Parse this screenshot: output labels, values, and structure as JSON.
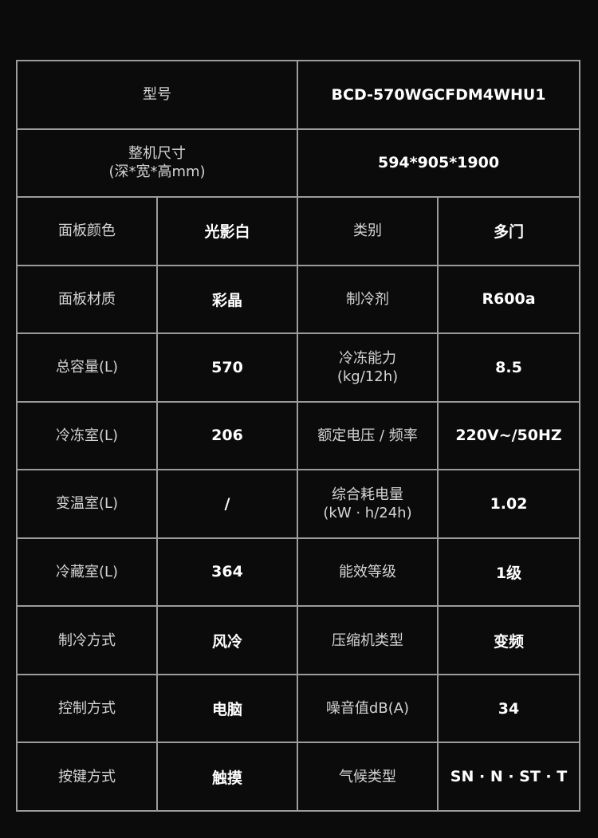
{
  "rows_wide": [
    {
      "label": "型号",
      "label_sub": "",
      "value": "BCD-570WGCFDM4WHU1"
    },
    {
      "label": "整机尺寸",
      "label_sub": "(深*宽*高mm)",
      "value": "594*905*1900"
    }
  ],
  "rows": [
    {
      "label1": "面板颜色",
      "value1": "光影白",
      "label2": "类别",
      "label2_sub": "",
      "value2": "多门"
    },
    {
      "label1": "面板材质",
      "value1": "彩晶",
      "label2": "制冷剂",
      "label2_sub": "",
      "value2": "R600a"
    },
    {
      "label1": "总容量(L)",
      "value1": "570",
      "label2": "冷冻能力",
      "label2_sub": "(kg/12h)",
      "value2": "8.5"
    },
    {
      "label1": "冷冻室(L)",
      "value1": "206",
      "label2": "额定电压 / 频率",
      "label2_sub": "",
      "value2": "220V~/50HZ"
    },
    {
      "label1": "变温室(L)",
      "value1": "/",
      "label2": "综合耗电量",
      "label2_sub": "(kW · h/24h)",
      "value2": "1.02"
    },
    {
      "label1": "冷藏室(L)",
      "value1": "364",
      "label2": "能效等级",
      "label2_sub": "",
      "value2": "1级"
    },
    {
      "label1": "制冷方式",
      "value1": "风冷",
      "label2": "压缩机类型",
      "label2_sub": "",
      "value2": "变频"
    },
    {
      "label1": "控制方式",
      "value1": "电脑",
      "label2": "噪音值dB(A)",
      "label2_sub": "",
      "value2": "34"
    },
    {
      "label1": "按键方式",
      "value1": "触摸",
      "label2": "气候类型",
      "label2_sub": "",
      "value2": "SN · N · ST · T"
    }
  ],
  "colors": {
    "background": "#0c0b0c",
    "border": "#9c9c9c",
    "label": "#d4d4d4",
    "value": "#ffffff"
  }
}
